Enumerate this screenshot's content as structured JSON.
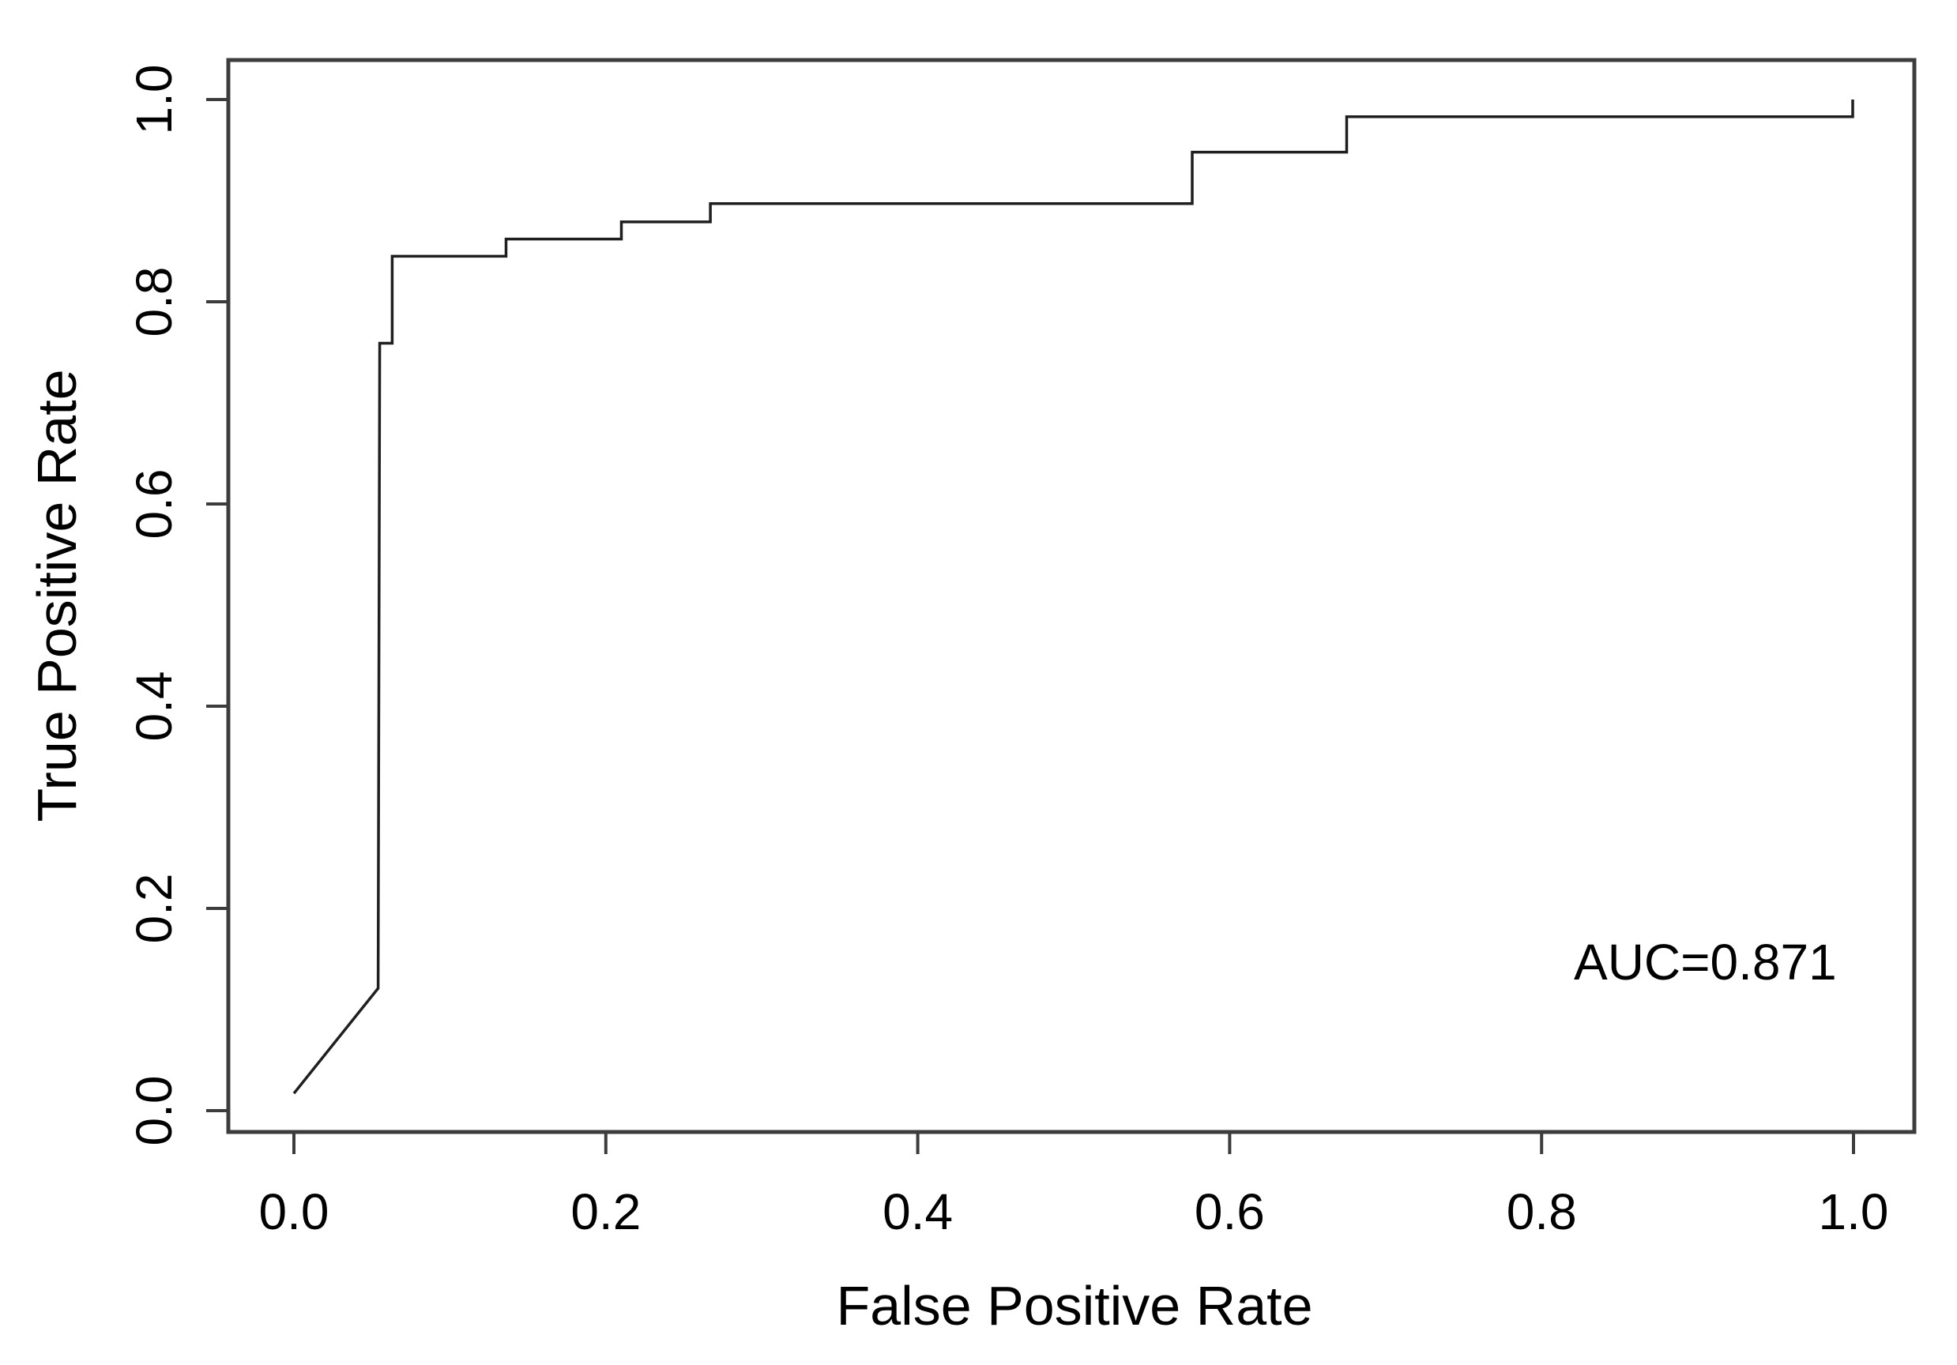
{
  "figure": {
    "background_color": "#ffffff",
    "curve_color": "#1f1f1f",
    "axis_color": "#3c3c3c",
    "text_color": "#000000"
  },
  "chart_data": {
    "type": "line",
    "subtype": "roc-step-curve",
    "title": "",
    "xlabel": "False Positive Rate",
    "ylabel": "True Positive Rate",
    "annotation": "AUC=0.871",
    "auc": 0.871,
    "xlim": [
      0,
      1
    ],
    "ylim": [
      0,
      1
    ],
    "grid": false,
    "legend_position": "none",
    "x_ticks": [
      0.0,
      0.2,
      0.4,
      0.6,
      0.8,
      1.0
    ],
    "y_ticks": [
      0.0,
      0.2,
      0.4,
      0.6,
      0.8,
      1.0
    ],
    "x_tick_labels": [
      "0.0",
      "0.2",
      "0.4",
      "0.6",
      "0.8",
      "1.0"
    ],
    "y_tick_labels": [
      "0.0",
      "0.2",
      "0.4",
      "0.6",
      "0.8",
      "1.0"
    ],
    "series": [
      {
        "name": "ROC curve",
        "points": [
          [
            0.0,
            0.017
          ],
          [
            0.054,
            0.121
          ],
          [
            0.055,
            0.759
          ],
          [
            0.063,
            0.759
          ],
          [
            0.063,
            0.845
          ],
          [
            0.136,
            0.845
          ],
          [
            0.136,
            0.862
          ],
          [
            0.21,
            0.862
          ],
          [
            0.21,
            0.879
          ],
          [
            0.267,
            0.879
          ],
          [
            0.267,
            0.897
          ],
          [
            0.576,
            0.897
          ],
          [
            0.576,
            0.948
          ],
          [
            0.675,
            0.948
          ],
          [
            0.675,
            0.983
          ],
          [
            0.9995,
            0.983
          ],
          [
            0.9995,
            1.0
          ]
        ]
      }
    ]
  }
}
